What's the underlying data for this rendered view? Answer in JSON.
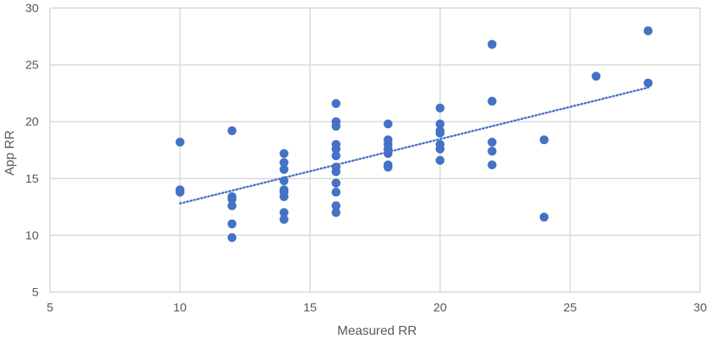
{
  "chart_data": {
    "type": "scatter",
    "title": "",
    "xlabel": "Measured RR",
    "ylabel": "App RR",
    "xlim": [
      5,
      30
    ],
    "ylim": [
      5,
      30
    ],
    "x_ticks": [
      "5",
      "10",
      "15",
      "20",
      "25",
      "30"
    ],
    "y_ticks": [
      "5",
      "10",
      "15",
      "20",
      "25",
      "30"
    ],
    "grid": true,
    "legend": "none",
    "marker_color": "#4472C4",
    "trendline": {
      "type": "linear",
      "style": "dotted",
      "color": "#4472C4",
      "from": [
        10,
        12.8
      ],
      "to": [
        28,
        23.0
      ]
    },
    "series": [
      {
        "points": [
          [
            10,
            18.2
          ],
          [
            10,
            14.0
          ],
          [
            10,
            13.8
          ],
          [
            12,
            19.2
          ],
          [
            12,
            13.4
          ],
          [
            12,
            13.2
          ],
          [
            12,
            12.6
          ],
          [
            12,
            11.0
          ],
          [
            12,
            9.8
          ],
          [
            14,
            17.2
          ],
          [
            14,
            16.4
          ],
          [
            14,
            15.8
          ],
          [
            14,
            14.8
          ],
          [
            14,
            14.0
          ],
          [
            14,
            13.8
          ],
          [
            14,
            13.4
          ],
          [
            14,
            12.0
          ],
          [
            14,
            11.4
          ],
          [
            16,
            21.6
          ],
          [
            16,
            20.0
          ],
          [
            16,
            19.6
          ],
          [
            16,
            18.0
          ],
          [
            16,
            17.6
          ],
          [
            16,
            17.0
          ],
          [
            16,
            16.0
          ],
          [
            16,
            15.6
          ],
          [
            16,
            14.6
          ],
          [
            16,
            13.8
          ],
          [
            16,
            12.6
          ],
          [
            16,
            12.0
          ],
          [
            18,
            19.8
          ],
          [
            18,
            18.4
          ],
          [
            18,
            18.0
          ],
          [
            18,
            17.6
          ],
          [
            18,
            17.2
          ],
          [
            18,
            16.2
          ],
          [
            18,
            16.0
          ],
          [
            20,
            21.2
          ],
          [
            20,
            19.8
          ],
          [
            20,
            19.2
          ],
          [
            20,
            19.0
          ],
          [
            20,
            18.0
          ],
          [
            20,
            17.6
          ],
          [
            20,
            16.6
          ],
          [
            22,
            26.8
          ],
          [
            22,
            21.8
          ],
          [
            22,
            18.2
          ],
          [
            22,
            17.4
          ],
          [
            22,
            16.2
          ],
          [
            24,
            18.4
          ],
          [
            24,
            11.6
          ],
          [
            26,
            24.0
          ],
          [
            28,
            28.0
          ],
          [
            28,
            23.4
          ]
        ]
      }
    ]
  }
}
